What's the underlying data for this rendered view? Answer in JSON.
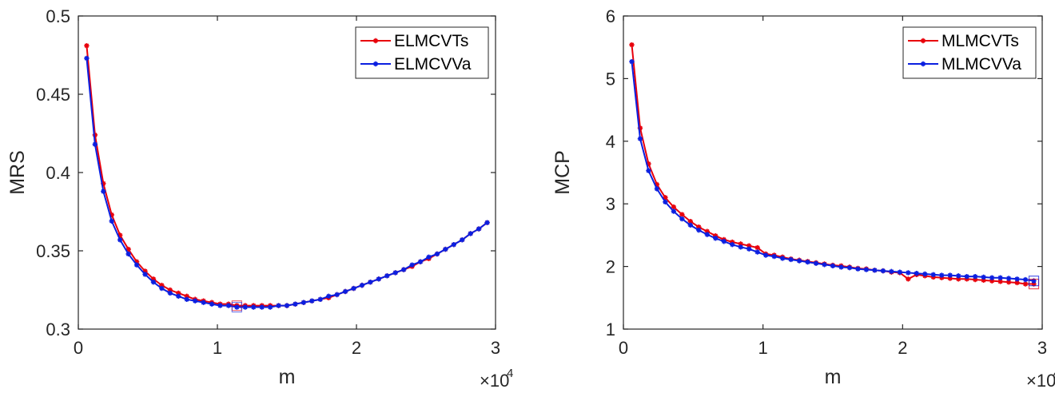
{
  "chart_data": [
    {
      "type": "line",
      "xlabel": "m",
      "ylabel": "MRS",
      "x_multiplier_label": "×10",
      "x_multiplier_exp": "4",
      "xlim": [
        0,
        3
      ],
      "ylim": [
        0.3,
        0.5
      ],
      "xticks": [
        "0",
        "1",
        "2",
        "3"
      ],
      "yticks": [
        "0.3",
        "0.35",
        "0.4",
        "0.45",
        "0.5"
      ],
      "legend_position": "top-right",
      "grid": false,
      "x": [
        0.06,
        0.12,
        0.18,
        0.24,
        0.3,
        0.36,
        0.42,
        0.48,
        0.54,
        0.6,
        0.66,
        0.72,
        0.78,
        0.84,
        0.9,
        0.96,
        1.02,
        1.08,
        1.14,
        1.2,
        1.26,
        1.32,
        1.38,
        1.44,
        1.5,
        1.56,
        1.62,
        1.68,
        1.74,
        1.8,
        1.86,
        1.92,
        1.98,
        2.04,
        2.1,
        2.16,
        2.22,
        2.28,
        2.34,
        2.4,
        2.46,
        2.52,
        2.58,
        2.64,
        2.7,
        2.76,
        2.82,
        2.88,
        2.94
      ],
      "series": [
        {
          "name": "ELMCVTs",
          "color": "#e8000b",
          "values": [
            0.481,
            0.424,
            0.393,
            0.373,
            0.36,
            0.351,
            0.343,
            0.337,
            0.332,
            0.328,
            0.325,
            0.323,
            0.321,
            0.319,
            0.318,
            0.317,
            0.316,
            0.316,
            0.315,
            0.315,
            0.315,
            0.315,
            0.315,
            0.315,
            0.315,
            0.316,
            0.317,
            0.318,
            0.319,
            0.32,
            0.322,
            0.324,
            0.326,
            0.328,
            0.33,
            0.332,
            0.334,
            0.336,
            0.338,
            0.34,
            0.343,
            0.345,
            0.348,
            0.351,
            0.354,
            0.357,
            0.361,
            0.364,
            0.368
          ]
        },
        {
          "name": "ELMCVVa",
          "color": "#0b1fe0",
          "values": [
            0.473,
            0.418,
            0.388,
            0.369,
            0.357,
            0.348,
            0.341,
            0.335,
            0.33,
            0.326,
            0.323,
            0.321,
            0.319,
            0.318,
            0.317,
            0.316,
            0.315,
            0.315,
            0.314,
            0.314,
            0.314,
            0.314,
            0.314,
            0.315,
            0.315,
            0.316,
            0.317,
            0.318,
            0.319,
            0.321,
            0.322,
            0.324,
            0.326,
            0.328,
            0.33,
            0.332,
            0.334,
            0.336,
            0.338,
            0.341,
            0.343,
            0.346,
            0.348,
            0.351,
            0.354,
            0.357,
            0.361,
            0.364,
            0.368
          ]
        }
      ]
    },
    {
      "type": "line",
      "xlabel": "m",
      "ylabel": "MCP",
      "x_multiplier_label": "×10",
      "x_multiplier_exp": "4",
      "xlim": [
        0,
        3
      ],
      "ylim": [
        1,
        6
      ],
      "xticks": [
        "0",
        "1",
        "2",
        "3"
      ],
      "yticks": [
        "1",
        "2",
        "3",
        "4",
        "5",
        "6"
      ],
      "legend_position": "top-right",
      "grid": false,
      "x": [
        0.06,
        0.12,
        0.18,
        0.24,
        0.3,
        0.36,
        0.42,
        0.48,
        0.54,
        0.6,
        0.66,
        0.72,
        0.78,
        0.84,
        0.9,
        0.96,
        1.02,
        1.08,
        1.14,
        1.2,
        1.26,
        1.32,
        1.38,
        1.44,
        1.5,
        1.56,
        1.62,
        1.68,
        1.74,
        1.8,
        1.86,
        1.92,
        1.98,
        2.04,
        2.1,
        2.16,
        2.22,
        2.28,
        2.34,
        2.4,
        2.46,
        2.52,
        2.58,
        2.64,
        2.7,
        2.76,
        2.82,
        2.88,
        2.94
      ],
      "series": [
        {
          "name": "MLMCVTs",
          "color": "#e8000b",
          "values": [
            5.54,
            4.21,
            3.64,
            3.31,
            3.1,
            2.95,
            2.83,
            2.72,
            2.63,
            2.56,
            2.49,
            2.43,
            2.39,
            2.36,
            2.33,
            2.3,
            2.2,
            2.18,
            2.15,
            2.12,
            2.1,
            2.08,
            2.06,
            2.04,
            2.02,
            2.01,
            1.99,
            1.97,
            1.96,
            1.94,
            1.93,
            1.91,
            1.9,
            1.8,
            1.87,
            1.85,
            1.83,
            1.82,
            1.81,
            1.8,
            1.8,
            1.79,
            1.78,
            1.77,
            1.76,
            1.75,
            1.74,
            1.72,
            1.72
          ]
        },
        {
          "name": "MLMCVVa",
          "color": "#0b1fe0",
          "values": [
            5.27,
            4.04,
            3.53,
            3.24,
            3.03,
            2.88,
            2.76,
            2.66,
            2.58,
            2.51,
            2.45,
            2.4,
            2.35,
            2.31,
            2.28,
            2.23,
            2.18,
            2.16,
            2.13,
            2.11,
            2.09,
            2.07,
            2.05,
            2.03,
            2.01,
            1.99,
            1.98,
            1.96,
            1.95,
            1.94,
            1.93,
            1.92,
            1.91,
            1.9,
            1.89,
            1.88,
            1.87,
            1.86,
            1.86,
            1.85,
            1.84,
            1.84,
            1.83,
            1.82,
            1.82,
            1.81,
            1.8,
            1.79,
            1.77
          ]
        }
      ]
    }
  ]
}
